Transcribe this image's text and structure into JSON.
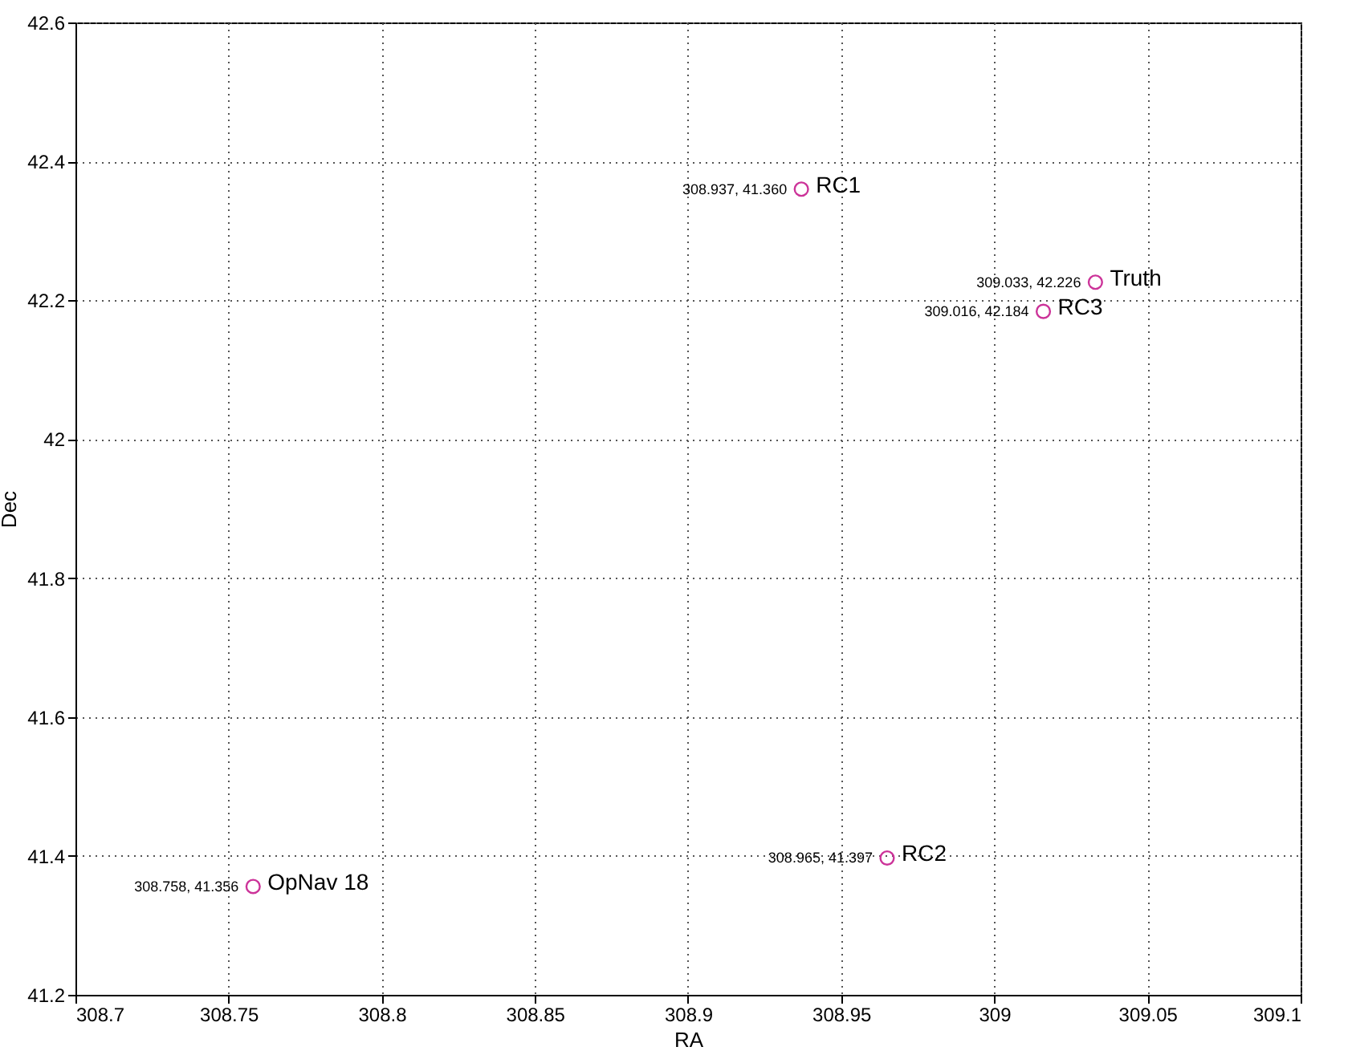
{
  "chart_data": {
    "type": "scatter",
    "xlabel": "RA",
    "ylabel": "Dec",
    "x": [
      308.758,
      308.937,
      308.965,
      309.016,
      309.033
    ],
    "series": [
      {
        "color": "#cc3399",
        "values": [
          41.356,
          42.36,
          41.397,
          42.184,
          42.226
        ],
        "value_labels": [
          "308.758, 41.356",
          "308.937, 41.360",
          "308.965, 41.397",
          "309.016, 42.184",
          "309.033, 42.226"
        ]
      }
    ],
    "annotations": [
      {
        "text": "OpNav 18",
        "x": 308.758,
        "y": 41.356
      },
      {
        "text": "RC1",
        "x": 308.937,
        "y": 42.36
      },
      {
        "text": "RC2",
        "x": 308.965,
        "y": 41.397
      },
      {
        "text": "RC3",
        "x": 309.016,
        "y": 42.184
      },
      {
        "text": "Truth",
        "x": 309.033,
        "y": 42.226
      }
    ],
    "xlim": [
      308.7,
      309.1
    ],
    "xticks": [
      308.7,
      308.75,
      308.8,
      308.85,
      308.9,
      308.95,
      309,
      309.05,
      309.1
    ],
    "ylim": [
      41.2,
      42.6
    ],
    "yticks": [
      41.2,
      41.4,
      41.6,
      41.8,
      42,
      42.2,
      42.4,
      42.6
    ],
    "grid": true,
    "marker": "circle"
  }
}
